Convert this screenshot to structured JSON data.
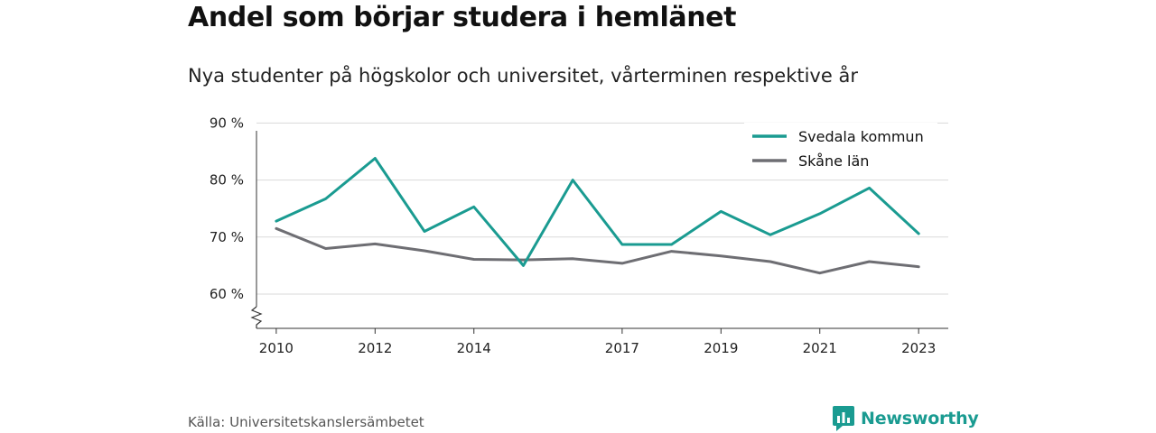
{
  "header": {
    "title": "Andel som börjar studera i hemlänet",
    "subtitle": "Nya studenter på högskolor och universitet, vårterminen respektive år"
  },
  "footer": {
    "source": "Källa: Universitetskanslersämbetet",
    "brand": "Newsworthy"
  },
  "chart_data": {
    "type": "line",
    "x": [
      2010,
      2011,
      2012,
      2013,
      2014,
      2015,
      2016,
      2017,
      2018,
      2019,
      2020,
      2021,
      2022,
      2023
    ],
    "x_tick_labels": [
      "2010",
      "2012",
      "2014",
      "2017",
      "2019",
      "2021",
      "2023"
    ],
    "y_tick_labels": [
      "60 %",
      "70 %",
      "80 %",
      "90 %"
    ],
    "y_ticks": [
      60,
      70,
      80,
      90
    ],
    "ylim": [
      54,
      91
    ],
    "xlim": [
      2009.6,
      2023.6
    ],
    "grid": true,
    "legend_position": "top-right",
    "series": [
      {
        "name": "Svedala kommun",
        "color": "#1a9b91",
        "values": [
          72.8,
          76.7,
          83.8,
          71.0,
          75.3,
          65.0,
          80.0,
          68.7,
          68.7,
          74.5,
          70.4,
          74.1,
          78.6,
          70.6
        ]
      },
      {
        "name": "Skåne län",
        "color": "#6e6e73",
        "values": [
          71.5,
          68.0,
          68.8,
          67.6,
          66.1,
          66.0,
          66.2,
          65.4,
          67.5,
          66.7,
          65.7,
          63.7,
          65.7,
          64.8
        ]
      }
    ]
  }
}
